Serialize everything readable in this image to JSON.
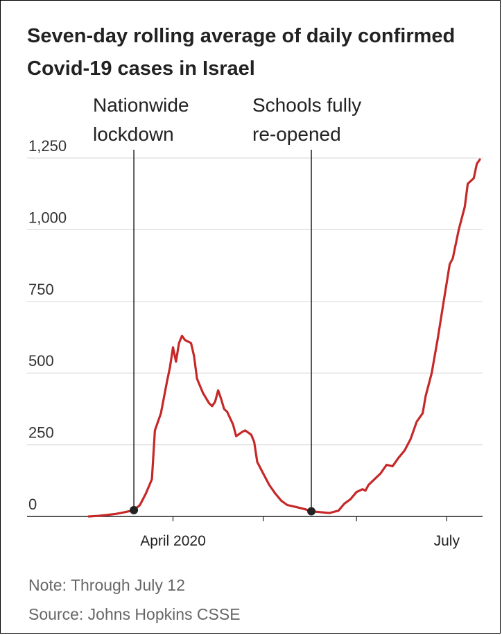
{
  "title": "Seven-day rolling average of daily confirmed Covid-19 cases in Israel",
  "note": "Note: Through July 12",
  "source": "Source: Johns Hopkins CSSE",
  "colors": {
    "line": "#c62828",
    "grid": "#dddddd",
    "axis": "#222222",
    "event": "#222222"
  },
  "chart_data": {
    "type": "line",
    "title": "Seven-day rolling average of daily confirmed Covid-19 cases in Israel",
    "ylim": [
      0,
      1250
    ],
    "yticks": [
      0,
      250,
      500,
      750,
      1000,
      1250
    ],
    "ytick_labels": [
      "0",
      "250",
      "500",
      "750",
      "1,000",
      "1,250"
    ],
    "xlim": [
      "2020-03-04",
      "2020-07-12"
    ],
    "xticks": [
      {
        "date": "2020-04-01",
        "label": "April 2020"
      },
      {
        "date": "2020-05-01",
        "label": ""
      },
      {
        "date": "2020-06-01",
        "label": ""
      },
      {
        "date": "2020-07-01",
        "label": "July"
      }
    ],
    "grid": true,
    "events": [
      {
        "date": "2020-03-19",
        "label": [
          "Nationwide",
          "lockdown"
        ]
      },
      {
        "date": "2020-05-17",
        "label": [
          "Schools fully",
          "re-opened"
        ]
      }
    ],
    "series": [
      {
        "points": [
          [
            "2020-03-04",
            0
          ],
          [
            "2020-03-07",
            2
          ],
          [
            "2020-03-10",
            5
          ],
          [
            "2020-03-13",
            9
          ],
          [
            "2020-03-16",
            15
          ],
          [
            "2020-03-19",
            22
          ],
          [
            "2020-03-21",
            40
          ],
          [
            "2020-03-23",
            80
          ],
          [
            "2020-03-25",
            130
          ],
          [
            "2020-03-26",
            300
          ],
          [
            "2020-03-28",
            360
          ],
          [
            "2020-03-30",
            470
          ],
          [
            "2020-03-31",
            520
          ],
          [
            "2020-04-01",
            590
          ],
          [
            "2020-04-02",
            540
          ],
          [
            "2020-04-03",
            605
          ],
          [
            "2020-04-04",
            630
          ],
          [
            "2020-04-05",
            615
          ],
          [
            "2020-04-07",
            605
          ],
          [
            "2020-04-08",
            560
          ],
          [
            "2020-04-09",
            480
          ],
          [
            "2020-04-11",
            430
          ],
          [
            "2020-04-13",
            395
          ],
          [
            "2020-04-14",
            385
          ],
          [
            "2020-04-15",
            400
          ],
          [
            "2020-04-16",
            440
          ],
          [
            "2020-04-17",
            410
          ],
          [
            "2020-04-18",
            375
          ],
          [
            "2020-04-19",
            365
          ],
          [
            "2020-04-21",
            320
          ],
          [
            "2020-04-22",
            280
          ],
          [
            "2020-04-24",
            295
          ],
          [
            "2020-04-25",
            300
          ],
          [
            "2020-04-27",
            285
          ],
          [
            "2020-04-28",
            260
          ],
          [
            "2020-04-29",
            190
          ],
          [
            "2020-05-01",
            150
          ],
          [
            "2020-05-03",
            110
          ],
          [
            "2020-05-05",
            80
          ],
          [
            "2020-05-07",
            55
          ],
          [
            "2020-05-09",
            40
          ],
          [
            "2020-05-12",
            33
          ],
          [
            "2020-05-15",
            25
          ],
          [
            "2020-05-17",
            18
          ],
          [
            "2020-05-20",
            15
          ],
          [
            "2020-05-23",
            12
          ],
          [
            "2020-05-26",
            20
          ],
          [
            "2020-05-28",
            45
          ],
          [
            "2020-05-30",
            60
          ],
          [
            "2020-06-01",
            85
          ],
          [
            "2020-06-03",
            95
          ],
          [
            "2020-06-04",
            90
          ],
          [
            "2020-06-05",
            110
          ],
          [
            "2020-06-07",
            130
          ],
          [
            "2020-06-09",
            150
          ],
          [
            "2020-06-11",
            180
          ],
          [
            "2020-06-13",
            175
          ],
          [
            "2020-06-15",
            205
          ],
          [
            "2020-06-17",
            230
          ],
          [
            "2020-06-19",
            270
          ],
          [
            "2020-06-21",
            330
          ],
          [
            "2020-06-23",
            360
          ],
          [
            "2020-06-24",
            420
          ],
          [
            "2020-06-26",
            500
          ],
          [
            "2020-06-28",
            620
          ],
          [
            "2020-06-30",
            750
          ],
          [
            "2020-07-02",
            880
          ],
          [
            "2020-07-03",
            900
          ],
          [
            "2020-07-05",
            1000
          ],
          [
            "2020-07-07",
            1080
          ],
          [
            "2020-07-08",
            1160
          ],
          [
            "2020-07-10",
            1180
          ],
          [
            "2020-07-11",
            1230
          ],
          [
            "2020-07-12",
            1245
          ]
        ]
      }
    ]
  }
}
